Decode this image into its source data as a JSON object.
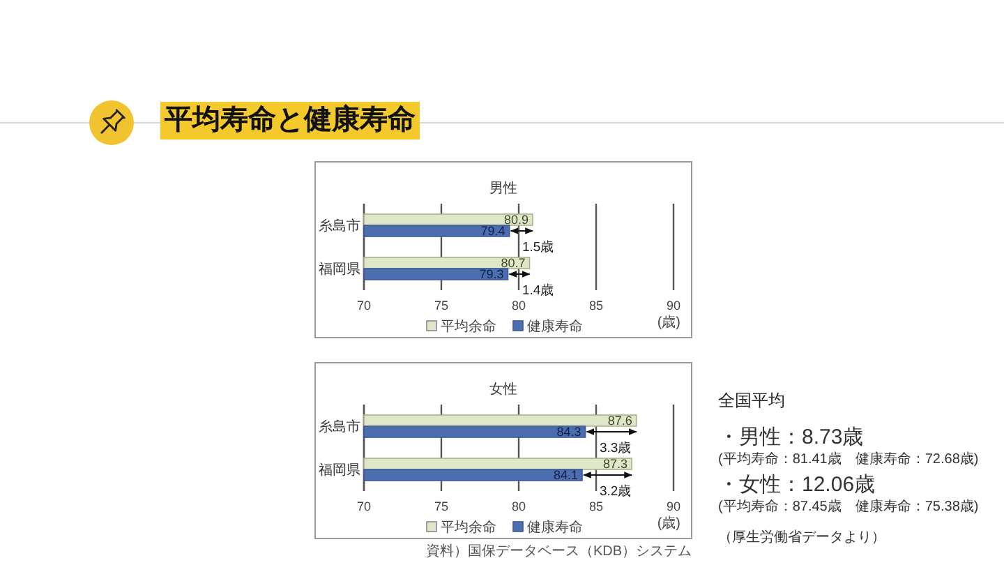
{
  "chart_data": [
    {
      "type": "other",
      "title": "平均寿命と健康寿命"
    },
    {
      "type": "bar",
      "orientation": "horizontal",
      "title": "男性",
      "categories": [
        "糸島市",
        "福岡県"
      ],
      "series": [
        {
          "name": "平均余命",
          "color": "#dfe7c8",
          "values": [
            80.9,
            80.7
          ]
        },
        {
          "name": "健康寿命",
          "color": "#4d6eae",
          "values": [
            79.4,
            79.3
          ]
        }
      ],
      "xlim": [
        70,
        90
      ],
      "xticks": [
        70,
        75,
        80,
        85,
        90
      ],
      "xlabel": "(歳)",
      "grid": "x",
      "legend": "bottom",
      "data_labels": true,
      "annotations": [
        {
          "text": "1.5歳",
          "x": 79.4,
          "y": "糸島市"
        },
        {
          "text": "1.4歳",
          "x": 79.3,
          "y": "福岡県"
        }
      ]
    },
    {
      "type": "bar",
      "orientation": "horizontal",
      "title": "女性",
      "categories": [
        "糸島市",
        "福岡県"
      ],
      "series": [
        {
          "name": "平均余命",
          "color": "#dfe7c8",
          "values": [
            87.6,
            87.3
          ]
        },
        {
          "name": "健康寿命",
          "color": "#4d6eae",
          "values": [
            84.3,
            84.1
          ]
        }
      ],
      "xlim": [
        70,
        90
      ],
      "xticks": [
        70,
        75,
        80,
        85,
        90
      ],
      "xlabel": "(歳)",
      "grid": "x",
      "legend": "bottom",
      "data_labels": true,
      "annotations": [
        {
          "text": "3.3歳",
          "x": 84.3,
          "y": "糸島市"
        },
        {
          "text": "3.2歳",
          "x": 84.1,
          "y": "福岡県"
        },
        "資料）国保データベース（KDB）システム"
      ]
    },
    {
      "type": "other",
      "title": "全国平均",
      "annotations": [
        "・男性：8.73歳",
        "(平均寿命：81.41歳　健康寿命：72.68歳)",
        "・女性：12.06歳",
        "(平均寿命：87.45歳　健康寿命：75.38歳)",
        "（厚生労働省データより）"
      ]
    }
  ]
}
